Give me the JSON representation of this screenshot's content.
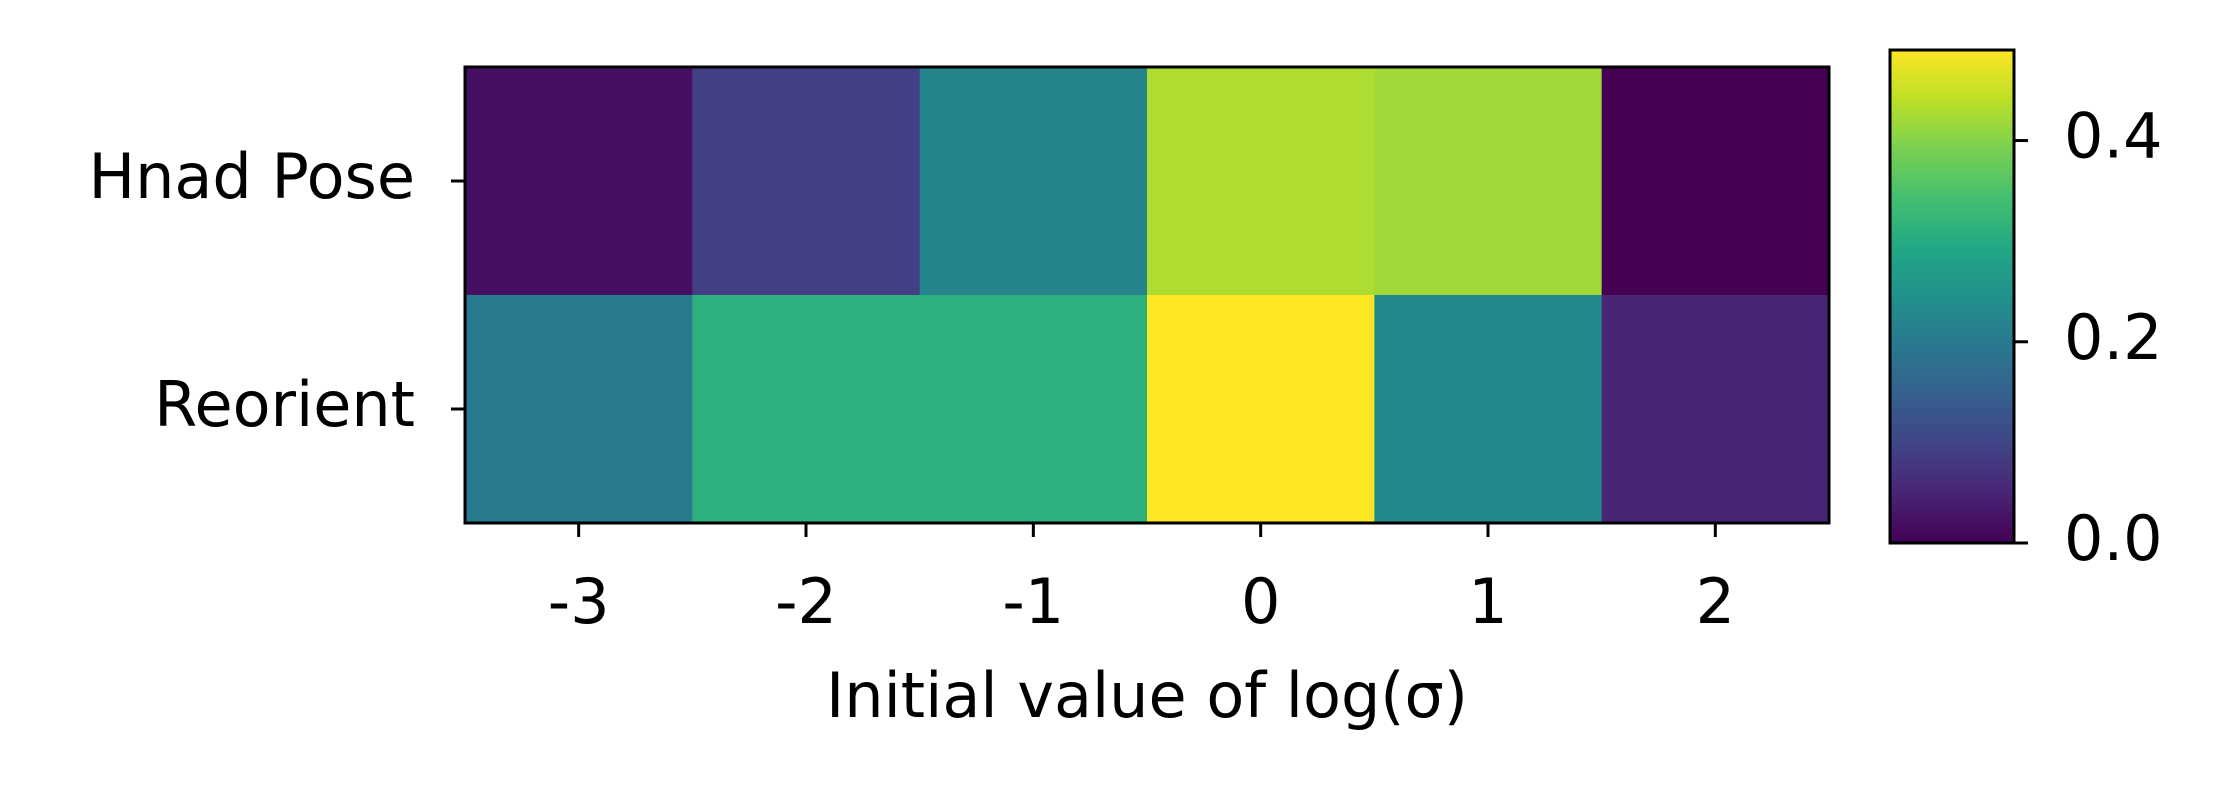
{
  "chart_data": {
    "type": "heatmap",
    "xlabel": "Initial value of log(σ)",
    "categories": [
      "-3",
      "-2",
      "-1",
      "0",
      "1",
      "2"
    ],
    "rows": [
      "Hnad Pose",
      "Reorient"
    ],
    "values": [
      [
        0.02,
        0.09,
        0.22,
        0.43,
        0.42,
        0.0
      ],
      [
        0.2,
        0.31,
        0.31,
        0.49,
        0.23,
        0.05
      ]
    ],
    "cmap": "viridis",
    "clim": [
      0,
      0.49
    ],
    "cticks": [
      {
        "value": 0,
        "label": "0.0"
      },
      {
        "value": 0.2,
        "label": "0.2"
      },
      {
        "value": 0.4,
        "label": "0.4"
      }
    ]
  }
}
